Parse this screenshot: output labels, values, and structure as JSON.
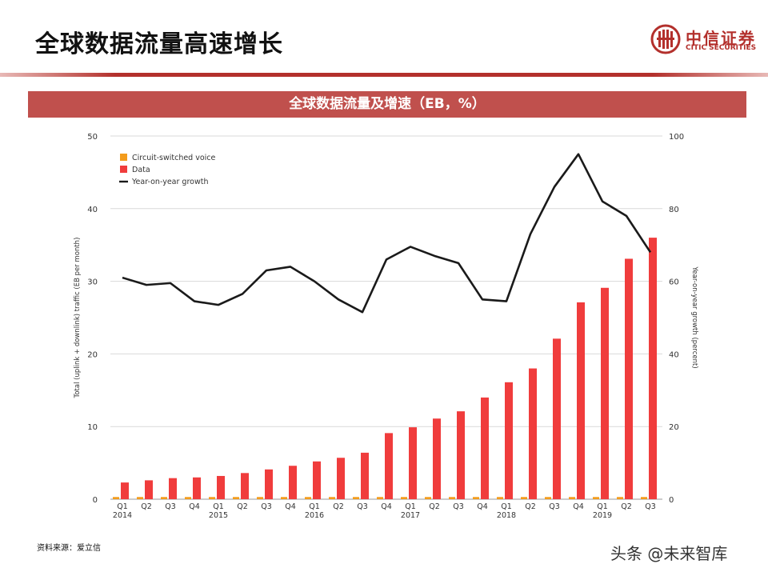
{
  "header": {
    "title": "全球数据流量高速增长",
    "logo_cn": "中信证券",
    "logo_en": "CITIC SECURITIES"
  },
  "banner": {
    "title": "全球数据流量及增速（EB，%）"
  },
  "footer": {
    "source": "资料来源：爱立信",
    "watermark": "头条 @未来智库"
  },
  "colors": {
    "brand": "#b3302c",
    "banner": "#c0504d",
    "voice": "#f39c1c",
    "data": "#f03c3c",
    "growth": "#1a1a1a"
  },
  "chart_data": {
    "type": "bar",
    "quarters": [
      "Q1",
      "Q2",
      "Q3",
      "Q4",
      "Q1",
      "Q2",
      "Q3",
      "Q4",
      "Q1",
      "Q2",
      "Q3",
      "Q4",
      "Q1",
      "Q2",
      "Q3",
      "Q4",
      "Q1",
      "Q2",
      "Q3",
      "Q4",
      "Q1",
      "Q2",
      "Q3"
    ],
    "years": [
      {
        "label": "2014",
        "index": 0
      },
      {
        "label": "2015",
        "index": 4
      },
      {
        "label": "2016",
        "index": 8
      },
      {
        "label": "2017",
        "index": 12
      },
      {
        "label": "2018",
        "index": 16
      },
      {
        "label": "2019",
        "index": 20
      }
    ],
    "series": [
      {
        "name": "Circuit-switched voice",
        "axis": "left",
        "kind": "bar",
        "values": [
          0.3,
          0.3,
          0.3,
          0.3,
          0.3,
          0.3,
          0.3,
          0.3,
          0.3,
          0.3,
          0.3,
          0.3,
          0.3,
          0.3,
          0.3,
          0.3,
          0.3,
          0.3,
          0.3,
          0.3,
          0.3,
          0.3,
          0.3
        ]
      },
      {
        "name": "Data",
        "axis": "left",
        "kind": "bar",
        "values": [
          2.3,
          2.6,
          2.9,
          3.0,
          3.2,
          3.6,
          4.1,
          4.6,
          5.2,
          5.7,
          6.4,
          9.1,
          9.9,
          11.1,
          12.1,
          14.0,
          16.1,
          18.0,
          22.1,
          27.1,
          29.1,
          33.1,
          36.0
        ]
      },
      {
        "name": "Year-on-year growth",
        "axis": "right",
        "kind": "line",
        "values": [
          61,
          59,
          59.5,
          54.5,
          53.5,
          56.5,
          63,
          64,
          60,
          55,
          51.5,
          66,
          69.5,
          67,
          65,
          55,
          54.5,
          73,
          86,
          95,
          82,
          78,
          68
        ]
      }
    ],
    "y_left": {
      "label": "Total (uplink + downlink) traffic (EB per month)",
      "min": 0,
      "max": 50,
      "ticks": [
        0,
        10,
        20,
        30,
        40,
        50
      ]
    },
    "y_right": {
      "label": "Year-on-year growth (percent)",
      "min": 0,
      "max": 100,
      "ticks": [
        0,
        20,
        40,
        60,
        80,
        100
      ]
    },
    "legend_position": "top-left",
    "grid": true
  }
}
